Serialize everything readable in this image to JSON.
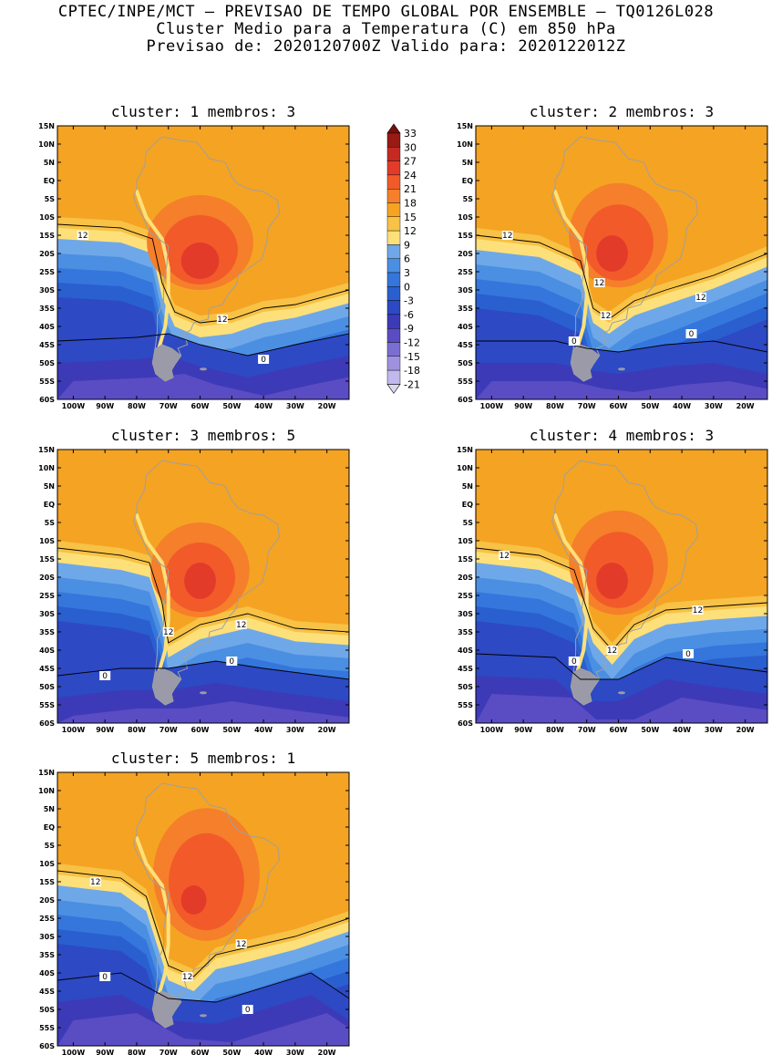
{
  "header": {
    "line1": "CPTEC/INPE/MCT — PREVISAO DE TEMPO GLOBAL POR ENSEMBLE — TQ0126L028",
    "line2": "Cluster Medio para a Temperatura (C) em 850 hPa",
    "line3": "Previsao de: 2020120700Z    Valido para: 2020122012Z"
  },
  "axes": {
    "lat_labels": [
      "15N",
      "10N",
      "5N",
      "EQ",
      "5S",
      "10S",
      "15S",
      "20S",
      "25S",
      "30S",
      "35S",
      "40S",
      "45S",
      "50S",
      "55S",
      "60S"
    ],
    "lon_labels": [
      "100W",
      "90W",
      "80W",
      "70W",
      "60W",
      "50W",
      "40W",
      "30W",
      "20W"
    ]
  },
  "panels": [
    {
      "title": "cluster: 1   membros: 3",
      "contour_labels": [
        {
          "text": "12",
          "lon": -97,
          "lat": -15
        },
        {
          "text": "12",
          "lon": -53,
          "lat": -38
        },
        {
          "text": "0",
          "lon": -40,
          "lat": -49
        }
      ]
    },
    {
      "title": "cluster: 2   membros: 3",
      "contour_labels": [
        {
          "text": "12",
          "lon": -95,
          "lat": -15
        },
        {
          "text": "12",
          "lon": -66,
          "lat": -28
        },
        {
          "text": "12",
          "lon": -64,
          "lat": -37
        },
        {
          "text": "12",
          "lon": -34,
          "lat": -32
        },
        {
          "text": "0",
          "lon": -74,
          "lat": -44
        },
        {
          "text": "0",
          "lon": -37,
          "lat": -42
        }
      ]
    },
    {
      "title": "cluster: 3   membros: 5",
      "contour_labels": [
        {
          "text": "12",
          "lon": -70,
          "lat": -35
        },
        {
          "text": "12",
          "lon": -47,
          "lat": -33
        },
        {
          "text": "0",
          "lon": -90,
          "lat": -47
        },
        {
          "text": "0",
          "lon": -50,
          "lat": -43
        }
      ]
    },
    {
      "title": "cluster: 4   membros: 3",
      "contour_labels": [
        {
          "text": "12",
          "lon": -96,
          "lat": -14
        },
        {
          "text": "12",
          "lon": -62,
          "lat": -40
        },
        {
          "text": "12",
          "lon": -35,
          "lat": -29
        },
        {
          "text": "0",
          "lon": -74,
          "lat": -43
        },
        {
          "text": "0",
          "lon": -38,
          "lat": -41
        }
      ]
    },
    {
      "title": "cluster: 5   membros: 1",
      "contour_labels": [
        {
          "text": "12",
          "lon": -93,
          "lat": -15
        },
        {
          "text": "12",
          "lon": -47,
          "lat": -32
        },
        {
          "text": "12",
          "lon": -64,
          "lat": -41
        },
        {
          "text": "0",
          "lon": -90,
          "lat": -41
        },
        {
          "text": "0",
          "lon": -45,
          "lat": -50
        }
      ]
    }
  ],
  "legend": {
    "labels": [
      "33",
      "30",
      "27",
      "24",
      "21",
      "18",
      "15",
      "12",
      "9",
      "6",
      "3",
      "0",
      "-3",
      "-6",
      "-9",
      "-12",
      "-15",
      "-18",
      "-21"
    ],
    "colors": [
      "#9a1a14",
      "#c42a22",
      "#e33b2a",
      "#f25a2a",
      "#f57f2a",
      "#f5a323",
      "#f7c245",
      "#fde07a",
      "#6fa8e8",
      "#4b8fe3",
      "#3576dc",
      "#2a5fcf",
      "#2d49c4",
      "#3d3ab8",
      "#5a4cc3",
      "#7b6ed2",
      "#9e92df",
      "#c1b8eb"
    ]
  },
  "map_colors": {
    "bands": [
      "#c1b8eb",
      "#9e92df",
      "#7b6ed2",
      "#5a4cc3",
      "#3d3ab8",
      "#2d49c4",
      "#2a5fcf",
      "#3576dc",
      "#4b8fe3",
      "#6fa8e8",
      "#fde07a",
      "#f7c245",
      "#f5a323",
      "#f57f2a",
      "#f25a2a",
      "#e33b2a",
      "#c42a22",
      "#9a1a14"
    ],
    "land_outline": "#a0a0a0",
    "contour": "#000000"
  }
}
